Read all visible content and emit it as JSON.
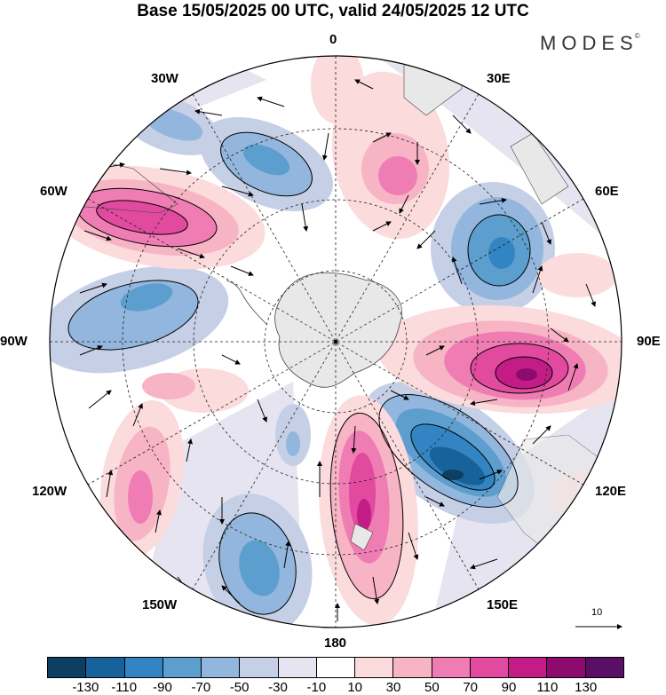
{
  "title": "Base 15/05/2025 00 UTC, valid 24/05/2025 12 UTC",
  "logo": "MODES",
  "logo_mark": "©",
  "longitude_labels": [
    "0",
    "30E",
    "60E",
    "90E",
    "120E",
    "150E",
    "180",
    "150W",
    "120W",
    "90W",
    "60W",
    "30W"
  ],
  "vector_scale": {
    "value": "10"
  },
  "colorbar": {
    "colors": [
      "#0c3f62",
      "#17629a",
      "#3384c2",
      "#5c9fcf",
      "#92b6dd",
      "#c5cfe6",
      "#e6e4f0",
      "#ffffff",
      "#fbdbdc",
      "#f7b4c4",
      "#ef7db4",
      "#e14a9e",
      "#c31c86",
      "#8d0a6e",
      "#5a0f66"
    ],
    "ticks": [
      "-130",
      "-110",
      "-90",
      "-70",
      "-50",
      "-30",
      "-10",
      "10",
      "30",
      "50",
      "70",
      "90",
      "110",
      "130"
    ]
  },
  "map": {
    "projection": "south-polar-stereographic",
    "land_color": "#e8e8e8"
  }
}
